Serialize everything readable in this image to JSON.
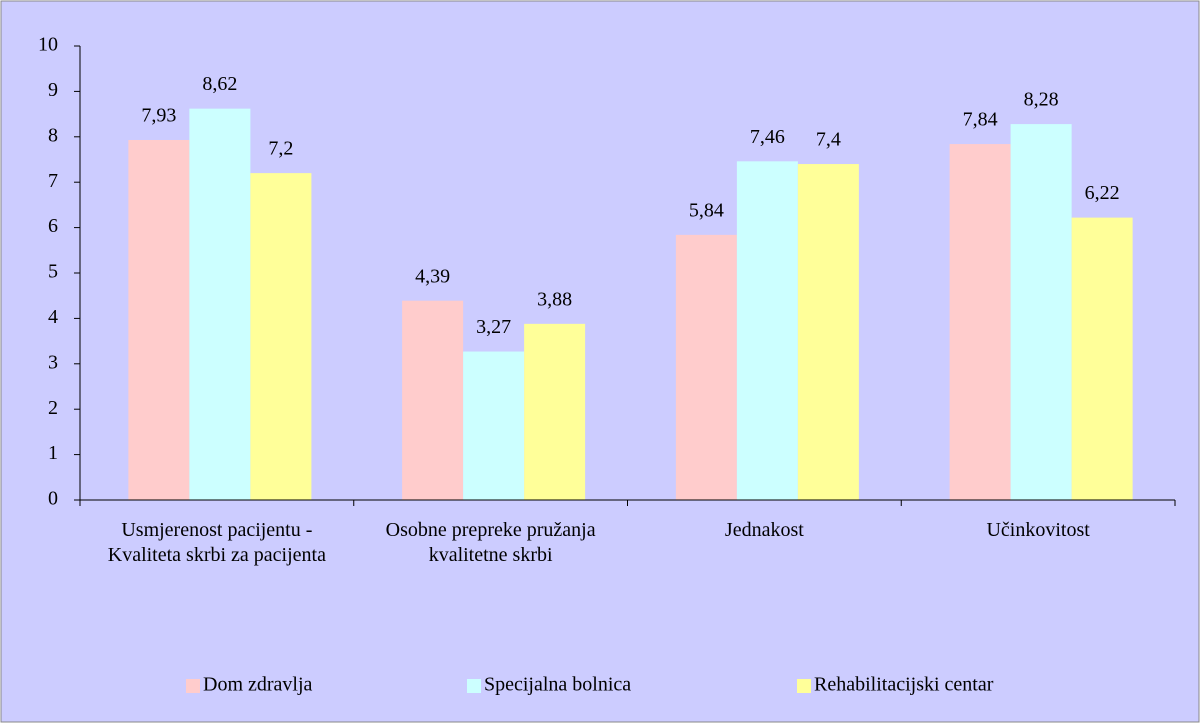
{
  "chart_data": {
    "type": "bar",
    "categories": [
      "Usmjerenost pacijentu - Kvaliteta skrbi za pacijenta",
      "Osobne prepreke pružanja kvalitetne skrbi",
      "Jednakost",
      "Učinkovitost"
    ],
    "series": [
      {
        "name": "Dom zdravlja",
        "color": "#ffcccc",
        "values": [
          7.93,
          4.39,
          5.84,
          7.84
        ],
        "value_labels": [
          "7,93",
          "4,39",
          "5,84",
          "7,84"
        ]
      },
      {
        "name": "Specijalna bolnica",
        "color": "#ccffff",
        "values": [
          8.62,
          3.27,
          7.46,
          8.28
        ],
        "value_labels": [
          "8,62",
          "3,27",
          "7,46",
          "8,28"
        ]
      },
      {
        "name": "Rehabilitacijski centar",
        "color": "#ffff99",
        "values": [
          7.2,
          3.88,
          7.4,
          6.22
        ],
        "value_labels": [
          "7,2",
          "3,88",
          "7,4",
          "6,22"
        ]
      }
    ],
    "ylim": [
      0,
      10
    ],
    "yticks": [
      0,
      1,
      2,
      3,
      4,
      5,
      6,
      7,
      8,
      9,
      10
    ],
    "legend": "bottom"
  }
}
